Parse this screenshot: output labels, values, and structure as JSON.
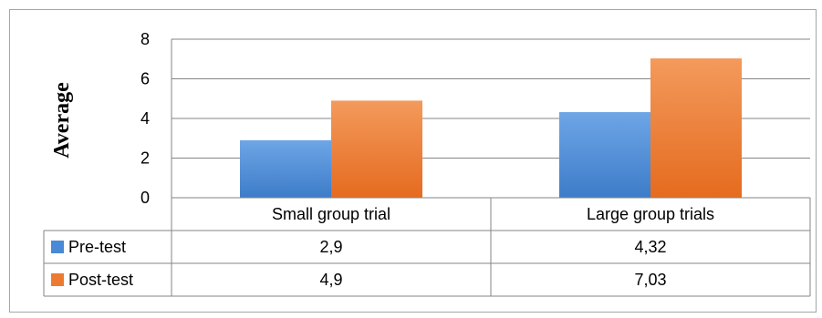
{
  "chart_data": {
    "type": "bar",
    "title": "",
    "xlabel": "",
    "ylabel": "Average",
    "ylim": [
      0,
      8
    ],
    "yticks": [
      0,
      2,
      4,
      6,
      8
    ],
    "grid": true,
    "legend": "data-table",
    "categories": [
      "Small group trial",
      "Large group trials"
    ],
    "series": [
      {
        "name": "Pre-test",
        "values": [
          2.9,
          4.32
        ],
        "labels": [
          "2,9",
          "4,32"
        ],
        "color": "#4a89d6"
      },
      {
        "name": "Post-test",
        "values": [
          4.9,
          7.03
        ],
        "labels": [
          "4,9",
          "7,03"
        ],
        "color": "#ee7a32"
      }
    ]
  }
}
